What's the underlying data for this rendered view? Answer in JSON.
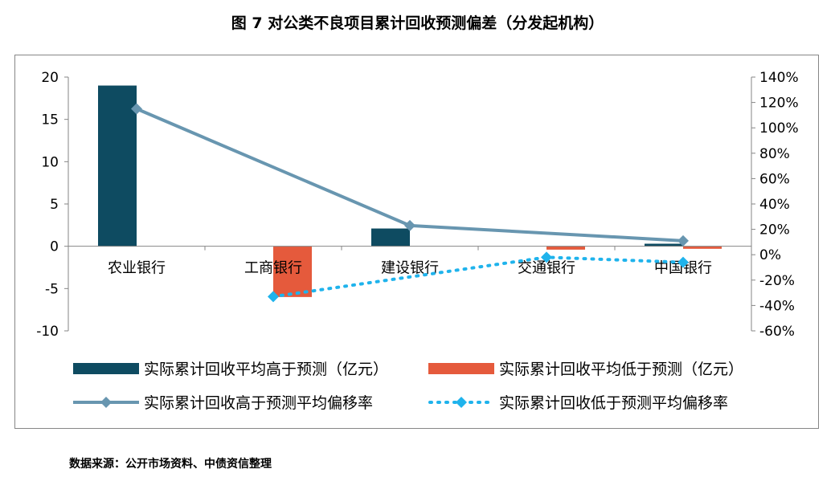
{
  "title": "图 7  对公类不良项目累计回收预测偏差（分发起机构）",
  "source": "数据来源：公开市场资料、中债资信整理",
  "colors": {
    "bar_high": "#0e4b61",
    "bar_low": "#e55a3c",
    "line_high": "#6896b0",
    "line_low": "#1fb3ec",
    "axis": "#868686"
  },
  "chart_data": {
    "type": "bar",
    "categories": [
      "农业银行",
      "工商银行",
      "建设银行",
      "交通银行",
      "中国银行"
    ],
    "y_left": {
      "ylim": [
        -10,
        20
      ],
      "ticks": [
        20,
        15,
        10,
        5,
        0,
        -5,
        -10
      ],
      "tick_labels": [
        "20",
        "15",
        "10",
        "5",
        "0",
        "-5",
        "-10"
      ]
    },
    "y_right": {
      "ylim": [
        -0.6,
        1.4
      ],
      "ticks": [
        1.4,
        1.2,
        1.0,
        0.8,
        0.6,
        0.4,
        0.2,
        0.0,
        -0.2,
        -0.4,
        -0.6
      ],
      "tick_labels": [
        "140%",
        "120%",
        "100%",
        "80%",
        "60%",
        "40%",
        "20%",
        "0%",
        "-20%",
        "-40%",
        "-60%"
      ]
    },
    "series": [
      {
        "name": "实际累计回收平均高于预测（亿元）",
        "kind": "bar",
        "axis": "left",
        "values": [
          19.0,
          null,
          2.1,
          null,
          0.3
        ]
      },
      {
        "name": "实际累计回收平均低于预测（亿元）",
        "kind": "bar",
        "axis": "left",
        "values": [
          null,
          -6.0,
          null,
          -0.4,
          -0.3
        ]
      },
      {
        "name": "实际累计回收高于预测平均偏移率",
        "kind": "line",
        "axis": "right",
        "values": [
          1.15,
          null,
          0.23,
          null,
          0.11
        ]
      },
      {
        "name": "实际累计回收低于预测平均偏移率",
        "kind": "line-dotted",
        "axis": "right",
        "values": [
          null,
          -0.33,
          null,
          -0.02,
          -0.06
        ]
      }
    ],
    "legend_position": "bottom",
    "grid": false
  }
}
